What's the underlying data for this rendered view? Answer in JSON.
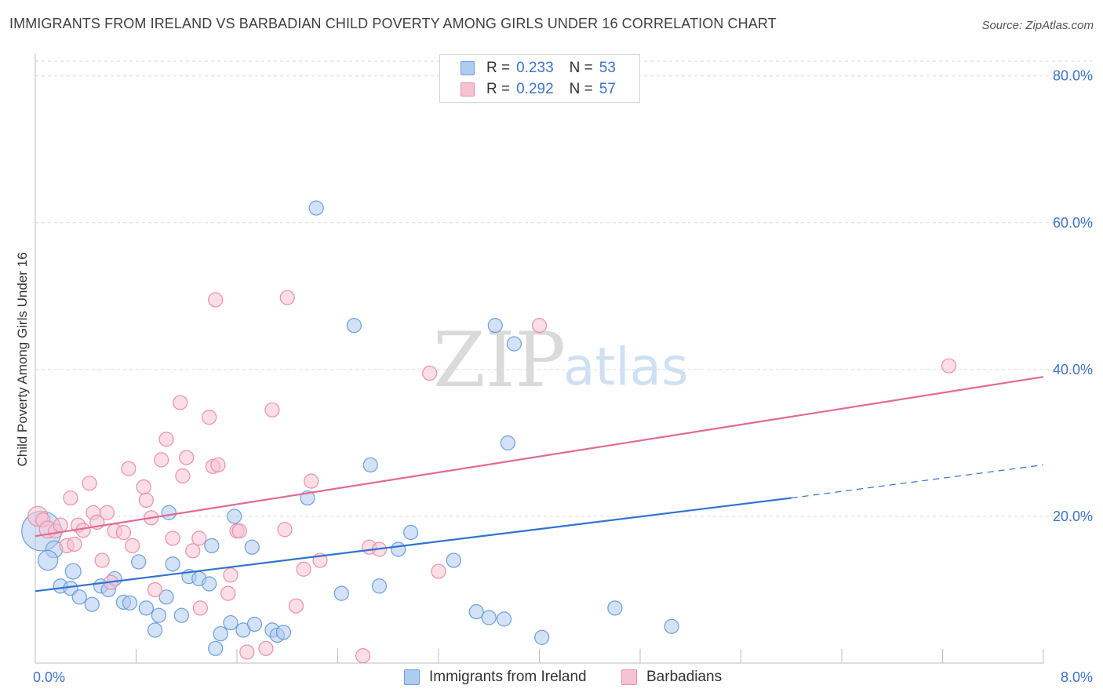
{
  "header": {
    "title": "IMMIGRANTS FROM IRELAND VS BARBADIAN CHILD POVERTY AMONG GIRLS UNDER 16 CORRELATION CHART",
    "source": "Source: ZipAtlas.com"
  },
  "legend": {
    "series1": {
      "r_label": "R =",
      "r_value": "0.233",
      "n_label": "N =",
      "n_value": "53"
    },
    "series2": {
      "r_label": "R =",
      "r_value": "0.292",
      "n_label": "N =",
      "n_value": "57"
    }
  },
  "watermark": {
    "zip": "ZIP",
    "atlas": "atlas"
  },
  "colors": {
    "blue_fill": "#aecbf0",
    "blue_stroke": "#6b9fdc",
    "blue_line": "#2f73d0",
    "pink_fill": "#f8c2d2",
    "pink_stroke": "#eb8fab",
    "pink_line": "#e06a93",
    "grid": "#d9d9d9",
    "axis_label": "#3f74c8"
  },
  "chart_data": {
    "type": "scatter",
    "xlabel": "",
    "ylabel": "Child Poverty Among Girls Under 16",
    "xlim": [
      0,
      8
    ],
    "ylim": [
      0,
      82
    ],
    "x_tick_labels": [
      "0.0%",
      "8.0%"
    ],
    "y_tick_labels": [
      "80.0%",
      "60.0%",
      "40.0%",
      "20.0%"
    ],
    "y_ticks": [
      80,
      60,
      40,
      20
    ],
    "grid": true,
    "legend_position": "top-center",
    "series": [
      {
        "name": "Immigrants from Ireland",
        "color": "blue",
        "points": [
          [
            0.05,
            18,
            28
          ],
          [
            0.15,
            15.5,
            12
          ],
          [
            0.1,
            14,
            14
          ],
          [
            0.3,
            12.5,
            11
          ],
          [
            0.2,
            10.5,
            10
          ],
          [
            0.28,
            10.2,
            10
          ],
          [
            0.35,
            9,
            10
          ],
          [
            0.45,
            8,
            10
          ],
          [
            0.52,
            10.5,
            10
          ],
          [
            0.58,
            10,
            10
          ],
          [
            0.63,
            11.5,
            10
          ],
          [
            0.7,
            8.3,
            10
          ],
          [
            0.75,
            8.2,
            10
          ],
          [
            0.82,
            13.8,
            10
          ],
          [
            0.88,
            7.5,
            10
          ],
          [
            0.95,
            4.5,
            10
          ],
          [
            0.98,
            6.5,
            10
          ],
          [
            1.04,
            9,
            10
          ],
          [
            1.09,
            13.5,
            10
          ],
          [
            1.16,
            6.5,
            10
          ],
          [
            1.22,
            11.8,
            10
          ],
          [
            1.3,
            11.5,
            10
          ],
          [
            1.38,
            10.8,
            10
          ],
          [
            1.4,
            16,
            10
          ],
          [
            1.43,
            2,
            10
          ],
          [
            1.47,
            4,
            10
          ],
          [
            1.55,
            5.5,
            10
          ],
          [
            1.58,
            20,
            10
          ],
          [
            1.65,
            4.5,
            10
          ],
          [
            1.72,
            15.8,
            10
          ],
          [
            1.74,
            5.3,
            10
          ],
          [
            1.88,
            4.5,
            10
          ],
          [
            1.92,
            3.8,
            10
          ],
          [
            1.97,
            4.2,
            10
          ],
          [
            2.16,
            22.5,
            10
          ],
          [
            2.23,
            62,
            10
          ],
          [
            2.43,
            9.5,
            10
          ],
          [
            2.53,
            46,
            10
          ],
          [
            2.66,
            27,
            10
          ],
          [
            2.73,
            10.5,
            10
          ],
          [
            2.88,
            15.5,
            10
          ],
          [
            2.98,
            17.8,
            10
          ],
          [
            3.32,
            14,
            10
          ],
          [
            3.5,
            7,
            10
          ],
          [
            3.6,
            6.2,
            10
          ],
          [
            3.65,
            46,
            10
          ],
          [
            3.72,
            6,
            10
          ],
          [
            3.75,
            30,
            10
          ],
          [
            3.8,
            43.5,
            10
          ],
          [
            4.02,
            3.5,
            10
          ],
          [
            4.6,
            7.5,
            10
          ],
          [
            5.05,
            5,
            10
          ],
          [
            1.06,
            20.5,
            10
          ]
        ],
        "trend": {
          "x": [
            0,
            6.0
          ],
          "y": [
            9.8,
            22.5
          ],
          "dashed_to": [
            8.0,
            27.0
          ]
        }
      },
      {
        "name": "Barbadians",
        "color": "pink",
        "points": [
          [
            0.02,
            20,
            14
          ],
          [
            0.06,
            19.5,
            10
          ],
          [
            0.1,
            18.2,
            12
          ],
          [
            0.16,
            18,
            10
          ],
          [
            0.2,
            18.8,
            10
          ],
          [
            0.25,
            16,
            10
          ],
          [
            0.28,
            22.5,
            10
          ],
          [
            0.31,
            16.2,
            10
          ],
          [
            0.34,
            18.8,
            10
          ],
          [
            0.38,
            18.1,
            10
          ],
          [
            0.43,
            24.5,
            10
          ],
          [
            0.46,
            20.5,
            10
          ],
          [
            0.49,
            19.2,
            10
          ],
          [
            0.53,
            14,
            10
          ],
          [
            0.57,
            20.5,
            10
          ],
          [
            0.6,
            11,
            10
          ],
          [
            0.63,
            18,
            10
          ],
          [
            0.7,
            17.8,
            10
          ],
          [
            0.74,
            26.5,
            10
          ],
          [
            0.77,
            16,
            10
          ],
          [
            0.86,
            24,
            10
          ],
          [
            0.88,
            22.2,
            10
          ],
          [
            0.92,
            19.8,
            10
          ],
          [
            0.95,
            10,
            10
          ],
          [
            1.0,
            27.7,
            10
          ],
          [
            1.04,
            30.5,
            10
          ],
          [
            1.09,
            17,
            10
          ],
          [
            1.15,
            35.5,
            10
          ],
          [
            1.17,
            25.5,
            10
          ],
          [
            1.2,
            28,
            10
          ],
          [
            1.25,
            15.3,
            10
          ],
          [
            1.3,
            17,
            10
          ],
          [
            1.31,
            7.5,
            10
          ],
          [
            1.38,
            33.5,
            10
          ],
          [
            1.41,
            26.8,
            10
          ],
          [
            1.43,
            49.5,
            10
          ],
          [
            1.45,
            27,
            10
          ],
          [
            1.53,
            9.5,
            10
          ],
          [
            1.55,
            12,
            10
          ],
          [
            1.6,
            18,
            10
          ],
          [
            1.62,
            18,
            10
          ],
          [
            1.68,
            1.5,
            10
          ],
          [
            1.83,
            2,
            10
          ],
          [
            1.88,
            34.5,
            10
          ],
          [
            1.98,
            18.2,
            10
          ],
          [
            2.0,
            49.8,
            10
          ],
          [
            2.07,
            7.8,
            10
          ],
          [
            2.13,
            12.8,
            10
          ],
          [
            2.19,
            24.8,
            10
          ],
          [
            2.26,
            14,
            10
          ],
          [
            2.6,
            1,
            10
          ],
          [
            2.65,
            15.8,
            10
          ],
          [
            2.73,
            15.5,
            10
          ],
          [
            3.13,
            39.5,
            10
          ],
          [
            3.2,
            12.5,
            10
          ],
          [
            4.0,
            46,
            10
          ],
          [
            7.25,
            40.5,
            10
          ]
        ],
        "trend": {
          "x": [
            0,
            8.0
          ],
          "y": [
            17.3,
            39.0
          ]
        }
      }
    ]
  },
  "bottom_legend": {
    "series1_label": "Immigrants from Ireland",
    "series2_label": "Barbadians"
  }
}
